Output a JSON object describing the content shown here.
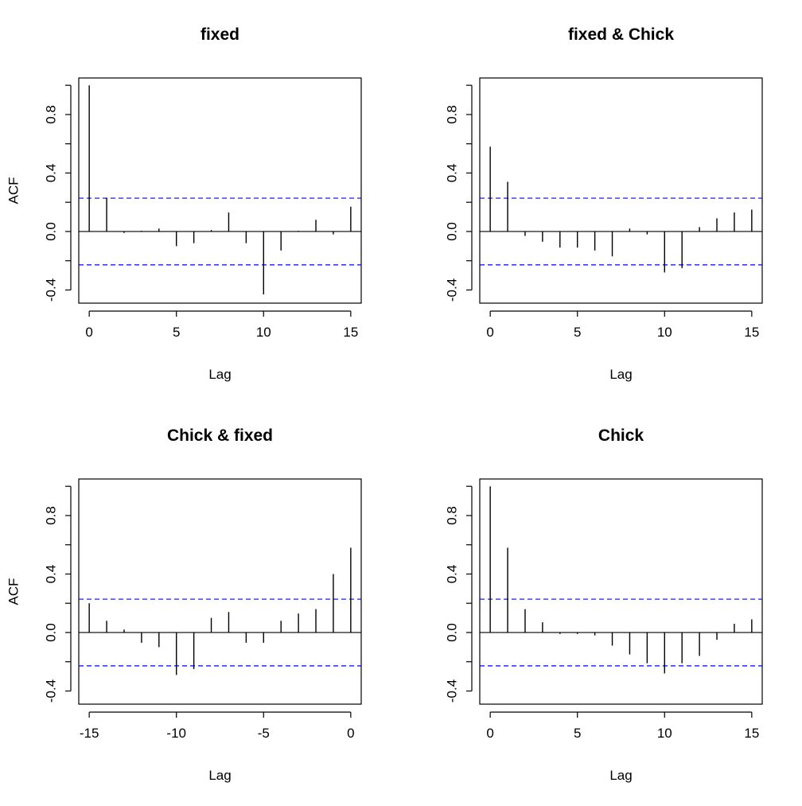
{
  "chart_data": [
    {
      "type": "bar",
      "title": "fixed",
      "xlabel": "Lag",
      "ylabel": "ACF",
      "xlim": [
        -0.6,
        15.6
      ],
      "ylim": [
        -0.49,
        1.05
      ],
      "x_ticks": [
        "0",
        "5",
        "10",
        "15"
      ],
      "x_tick_values": [
        0,
        5,
        10,
        15
      ],
      "y_ticks": [
        "-0.4",
        "0.0",
        "0.4",
        "0.8"
      ],
      "y_tick_values": [
        -0.4,
        0,
        0.4,
        0.8
      ],
      "confidence_band": 0.228,
      "lags": [
        0,
        1,
        2,
        3,
        4,
        5,
        6,
        7,
        8,
        9,
        10,
        11,
        12,
        13,
        14,
        15
      ],
      "values": [
        1.0,
        0.23,
        -0.01,
        0.005,
        0.02,
        -0.1,
        -0.08,
        0.01,
        0.13,
        -0.08,
        -0.43,
        -0.13,
        0.005,
        0.08,
        -0.02,
        0.17
      ]
    },
    {
      "type": "bar",
      "title": "fixed & Chick",
      "xlabel": "Lag",
      "ylabel": "",
      "xlim": [
        -0.6,
        15.6
      ],
      "ylim": [
        -0.49,
        1.05
      ],
      "x_ticks": [
        "0",
        "5",
        "10",
        "15"
      ],
      "x_tick_values": [
        0,
        5,
        10,
        15
      ],
      "y_ticks": [
        "-0.4",
        "0.0",
        "0.4",
        "0.8"
      ],
      "y_tick_values": [
        -0.4,
        0,
        0.4,
        0.8
      ],
      "confidence_band": 0.228,
      "lags": [
        0,
        1,
        2,
        3,
        4,
        5,
        6,
        7,
        8,
        9,
        10,
        11,
        12,
        13,
        14,
        15
      ],
      "values": [
        0.58,
        0.34,
        -0.03,
        -0.07,
        -0.11,
        -0.11,
        -0.13,
        -0.17,
        0.02,
        -0.02,
        -0.28,
        -0.25,
        0.03,
        0.09,
        0.13,
        0.15
      ]
    },
    {
      "type": "bar",
      "title": "Chick & fixed",
      "xlabel": "Lag",
      "ylabel": "ACF",
      "xlim": [
        -15.6,
        0.6
      ],
      "ylim": [
        -0.49,
        1.05
      ],
      "x_ticks": [
        "-15",
        "-10",
        "-5",
        "0"
      ],
      "x_tick_values": [
        -15,
        -10,
        -5,
        0
      ],
      "y_ticks": [
        "-0.4",
        "0.0",
        "0.4",
        "0.8"
      ],
      "y_tick_values": [
        -0.4,
        0,
        0.4,
        0.8
      ],
      "confidence_band": 0.228,
      "lags": [
        -15,
        -14,
        -13,
        -12,
        -11,
        -10,
        -9,
        -8,
        -7,
        -6,
        -5,
        -4,
        -3,
        -2,
        -1,
        0
      ],
      "values": [
        0.2,
        0.08,
        0.02,
        -0.07,
        -0.1,
        -0.29,
        -0.25,
        0.1,
        0.14,
        -0.07,
        -0.07,
        0.08,
        0.13,
        0.16,
        0.4,
        0.58
      ]
    },
    {
      "type": "bar",
      "title": "Chick",
      "xlabel": "Lag",
      "ylabel": "",
      "xlim": [
        -0.6,
        15.6
      ],
      "ylim": [
        -0.49,
        1.05
      ],
      "x_ticks": [
        "0",
        "5",
        "10",
        "15"
      ],
      "x_tick_values": [
        0,
        5,
        10,
        15
      ],
      "y_ticks": [
        "-0.4",
        "0.0",
        "0.4",
        "0.8"
      ],
      "y_tick_values": [
        -0.4,
        0,
        0.4,
        0.8
      ],
      "confidence_band": 0.228,
      "lags": [
        0,
        1,
        2,
        3,
        4,
        5,
        6,
        7,
        8,
        9,
        10,
        11,
        12,
        13,
        14,
        15
      ],
      "values": [
        1.0,
        0.58,
        0.16,
        0.07,
        -0.01,
        -0.01,
        -0.02,
        -0.09,
        -0.15,
        -0.21,
        -0.28,
        -0.21,
        -0.16,
        -0.05,
        0.06,
        0.09
      ]
    }
  ],
  "colors": {
    "spike": "#000000",
    "confidence_line": "#0000ff",
    "axis": "#000000",
    "background": "#ffffff"
  }
}
